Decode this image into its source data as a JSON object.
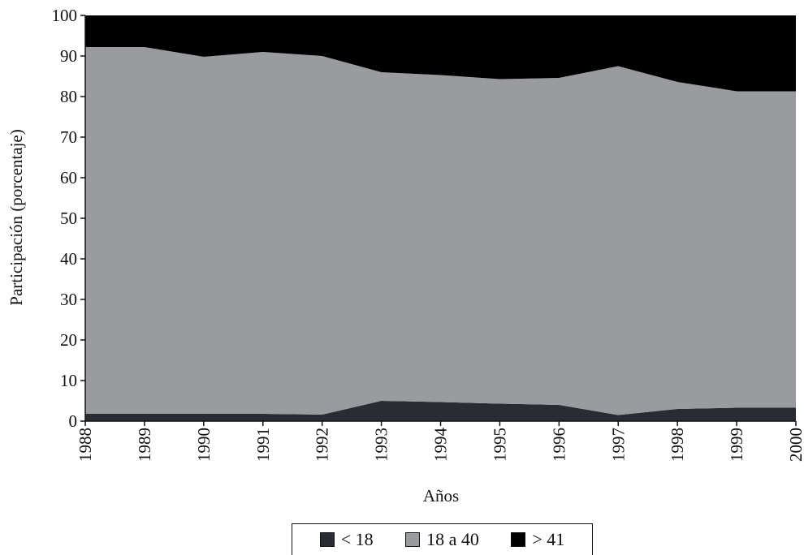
{
  "chart_data": {
    "type": "area",
    "stacked": true,
    "x": [
      "1988",
      "1989",
      "1990",
      "1991",
      "1992",
      "1993",
      "1994",
      "1995",
      "1996",
      "1997",
      "1998",
      "1999",
      "2000"
    ],
    "series": [
      {
        "name": "< 18",
        "color": "#2a2c34",
        "values": [
          1.8,
          1.8,
          1.8,
          1.8,
          1.6,
          5.0,
          4.7,
          4.3,
          4.0,
          1.5,
          3.0,
          3.3,
          3.3
        ]
      },
      {
        "name": "18 a 40",
        "color": "#9a9b9e",
        "values": [
          90.4,
          90.4,
          88.0,
          89.2,
          88.4,
          81.0,
          80.6,
          80.0,
          80.6,
          86.0,
          80.6,
          78.0,
          78.0
        ]
      },
      {
        "name": "> 41",
        "color": "#000000",
        "values": [
          7.8,
          7.8,
          10.2,
          9.0,
          10.0,
          14.0,
          14.7,
          15.7,
          15.4,
          12.5,
          16.4,
          18.7,
          18.7
        ]
      }
    ],
    "xlabel": "Años",
    "ylabel": "Participación (porcentaje)",
    "ylim": [
      0,
      100
    ],
    "yticks": [
      "0",
      "10",
      "20",
      "30",
      "40",
      "50",
      "60",
      "70",
      "80",
      "90",
      "100"
    ],
    "grid": false,
    "legend_position": "bottom"
  }
}
